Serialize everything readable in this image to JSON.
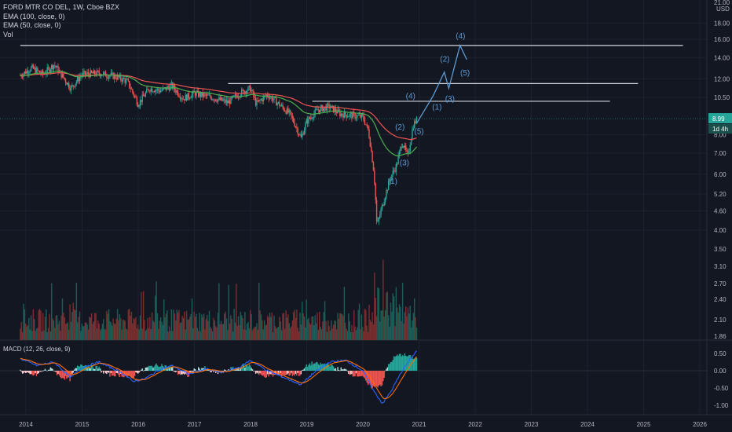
{
  "chart_data": {
    "type": "candlestick",
    "title": "FORD MTR CO DEL, 1W, Cboe BZX",
    "legend": [
      "EMA (100, close, 0)",
      "EMA (50, close, 0)",
      "Vol"
    ],
    "currency": "USD",
    "price_axis": {
      "scale": "log",
      "ticks": [
        "4.00",
        "4.60",
        "5.20",
        "6.00",
        "7.00",
        "8.00",
        "10.50",
        "12.00",
        "14.00",
        "16.00",
        "18.00"
      ],
      "top_tick_cut": "21.00",
      "lower_ticks": [
        "3.50",
        "3.10",
        "2.70",
        "2.40",
        "2.10",
        "1.86"
      ]
    },
    "x_ticks": [
      "2014",
      "2015",
      "2016",
      "2017",
      "2018",
      "2019",
      "2020",
      "2021",
      "2022",
      "2023",
      "2024",
      "2025",
      "2026"
    ],
    "last_price_label": "8.99",
    "countdown_label": "1d 4h",
    "last_price": 8.99,
    "horizontal_levels": [
      {
        "price": 15.3,
        "from": 2013.9,
        "to": 2025.7
      },
      {
        "price": 11.6,
        "from": 2017.6,
        "to": 2024.9
      },
      {
        "price": 10.2,
        "from": 2019.1,
        "to": 2024.4
      }
    ],
    "wave_labels_count": [
      "(1)",
      "(2)",
      "(3)",
      "(4)",
      "(5)"
    ],
    "wave_labels_past": [
      {
        "text": "(1)",
        "x": 2020.53,
        "y": 5.6
      },
      {
        "text": "(2)",
        "x": 2020.66,
        "y": 8.3
      },
      {
        "text": "(3)",
        "x": 2020.74,
        "y": 6.4
      },
      {
        "text": "(4)",
        "x": 2020.85,
        "y": 10.4
      },
      {
        "text": "(5)",
        "x": 2021.0,
        "y": 8.05
      }
    ],
    "wave_labels_future": [
      {
        "text": "(1)",
        "x": 2021.32,
        "y": 9.6
      },
      {
        "text": "(2)",
        "x": 2021.46,
        "y": 13.6
      },
      {
        "text": "(3)",
        "x": 2021.55,
        "y": 10.2
      },
      {
        "text": "(4)",
        "x": 2021.74,
        "y": 16.1
      },
      {
        "text": "(5)",
        "x": 2021.82,
        "y": 12.3
      }
    ],
    "projection_path": [
      [
        2020.96,
        8.7
      ],
      [
        2021.25,
        10.6
      ],
      [
        2021.45,
        12.6
      ],
      [
        2021.53,
        11.2
      ],
      [
        2021.73,
        15.3
      ],
      [
        2021.85,
        13.8
      ]
    ],
    "series": [
      {
        "name": "EMA (100, close, 0)",
        "color": "#ef5350"
      },
      {
        "name": "EMA (50, close, 0)",
        "color": "#4caf50"
      }
    ],
    "price_anchors": [
      [
        2013.9,
        12.3
      ],
      [
        2014.1,
        13.0
      ],
      [
        2014.3,
        12.4
      ],
      [
        2014.5,
        13.3
      ],
      [
        2014.8,
        11.2
      ],
      [
        2015.0,
        12.4
      ],
      [
        2015.3,
        12.5
      ],
      [
        2015.6,
        12.2
      ],
      [
        2015.8,
        11.8
      ],
      [
        2016.0,
        10.0
      ],
      [
        2016.2,
        11.2
      ],
      [
        2016.4,
        11.0
      ],
      [
        2016.6,
        11.4
      ],
      [
        2016.8,
        10.4
      ],
      [
        2017.0,
        10.8
      ],
      [
        2017.3,
        10.5
      ],
      [
        2017.6,
        10.1
      ],
      [
        2017.8,
        10.8
      ],
      [
        2018.0,
        11.2
      ],
      [
        2018.1,
        10.0
      ],
      [
        2018.3,
        10.7
      ],
      [
        2018.5,
        10.0
      ],
      [
        2018.7,
        9.3
      ],
      [
        2018.9,
        7.8
      ],
      [
        2019.0,
        8.8
      ],
      [
        2019.2,
        9.6
      ],
      [
        2019.4,
        9.8
      ],
      [
        2019.6,
        9.3
      ],
      [
        2019.8,
        9.2
      ],
      [
        2020.0,
        9.1
      ],
      [
        2020.1,
        8.2
      ],
      [
        2020.2,
        6.0
      ],
      [
        2020.25,
        4.1
      ],
      [
        2020.35,
        4.8
      ],
      [
        2020.5,
        5.9
      ],
      [
        2020.6,
        6.4
      ],
      [
        2020.7,
        7.6
      ],
      [
        2020.8,
        6.8
      ],
      [
        2020.9,
        8.6
      ],
      [
        2020.97,
        8.99
      ]
    ],
    "volume_label_note": "Vol",
    "macd": {
      "title": "MACD (12, 26, close, 9)",
      "ticks": [
        "0.50",
        "0.00",
        "-0.50",
        "-1.00"
      ],
      "macd_color": "#2962ff",
      "signal_color": "#ff6d00",
      "anchors": [
        [
          2013.9,
          0.35
        ],
        [
          2014.2,
          0.15
        ],
        [
          2014.5,
          0.25
        ],
        [
          2014.8,
          -0.2
        ],
        [
          2015.0,
          0.1
        ],
        [
          2015.3,
          0.25
        ],
        [
          2015.7,
          -0.05
        ],
        [
          2015.9,
          -0.3
        ],
        [
          2016.1,
          -0.25
        ],
        [
          2016.4,
          0.05
        ],
        [
          2016.6,
          0.15
        ],
        [
          2016.9,
          -0.1
        ],
        [
          2017.2,
          0.05
        ],
        [
          2017.5,
          -0.05
        ],
        [
          2017.8,
          0.1
        ],
        [
          2018.0,
          0.3
        ],
        [
          2018.3,
          0.0
        ],
        [
          2018.6,
          -0.2
        ],
        [
          2018.9,
          -0.4
        ],
        [
          2019.1,
          -0.1
        ],
        [
          2019.4,
          0.25
        ],
        [
          2019.7,
          0.3
        ],
        [
          2020.0,
          0.0
        ],
        [
          2020.2,
          -0.6
        ],
        [
          2020.35,
          -0.95
        ],
        [
          2020.5,
          -0.6
        ],
        [
          2020.7,
          0.0
        ],
        [
          2020.85,
          0.35
        ],
        [
          2020.97,
          0.6
        ]
      ]
    }
  }
}
